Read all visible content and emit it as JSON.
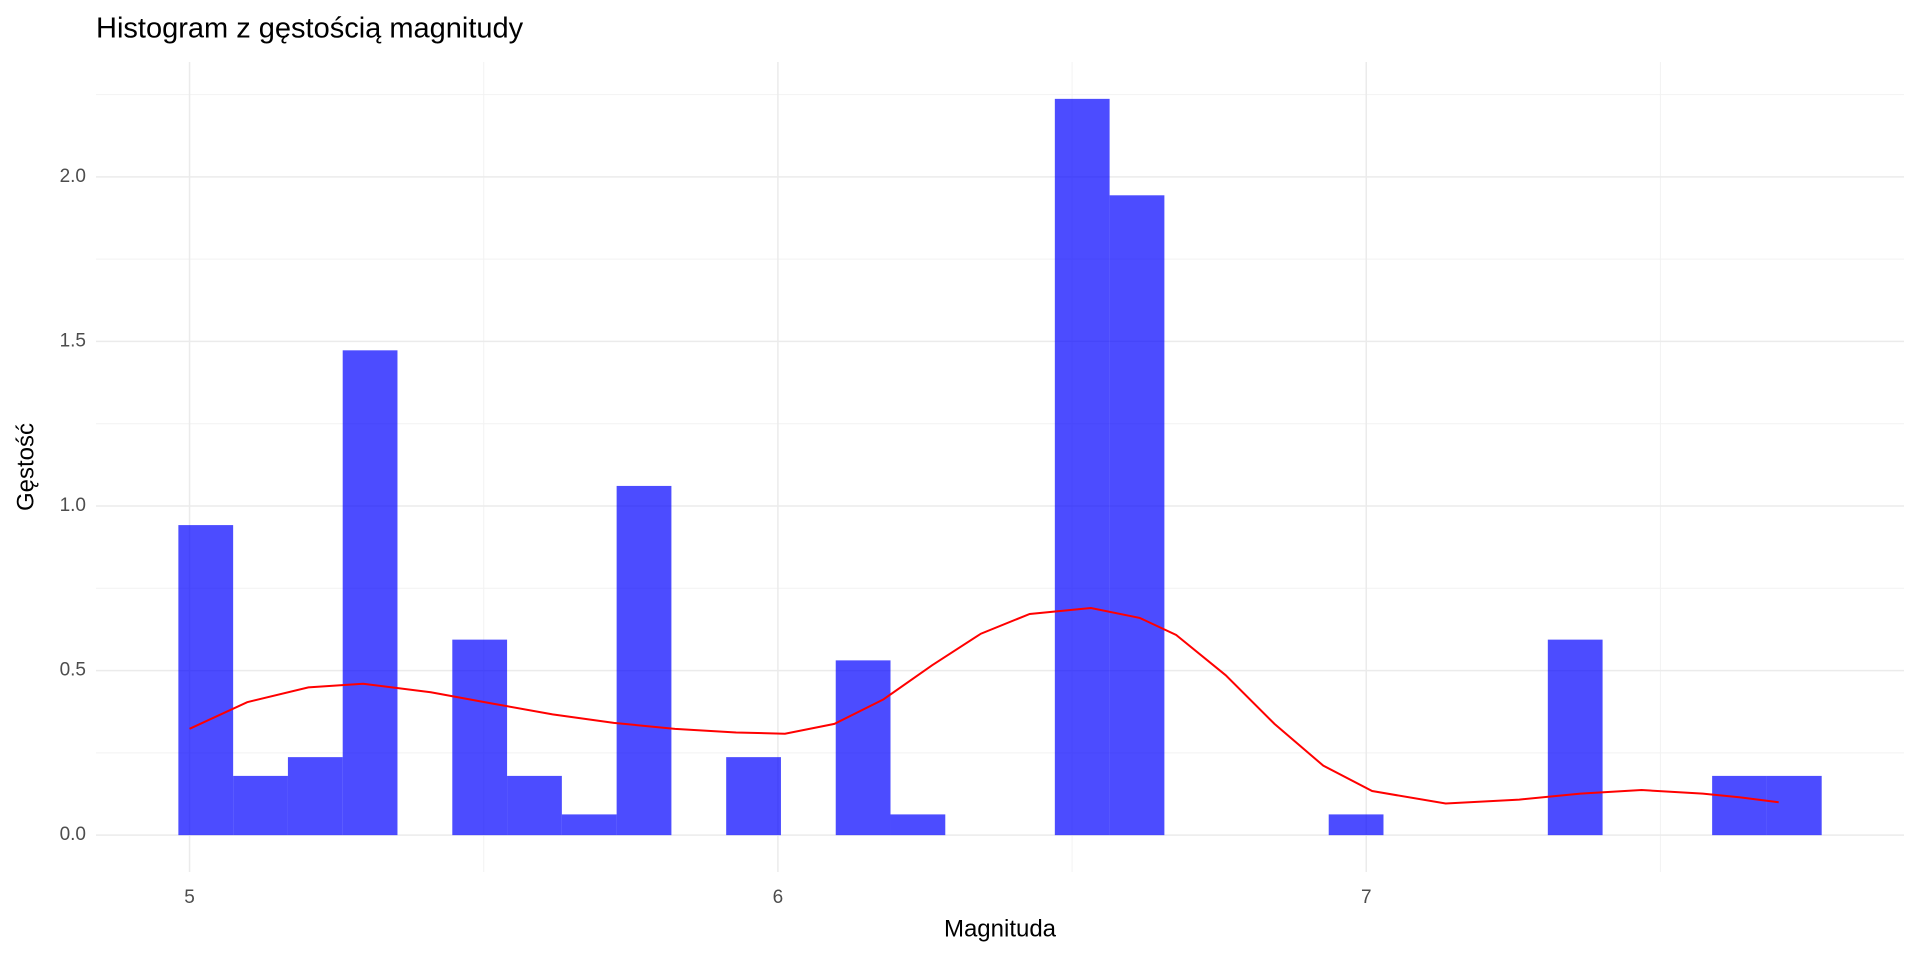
{
  "chart_data": {
    "type": "histogram",
    "title": "Histogram z gęstością magnitudy",
    "x_label": "Magnituda",
    "y_label": "Gęstość",
    "bins": [
      4.981,
      5.0741,
      5.1672,
      5.2603,
      5.3534,
      5.4466,
      5.5397,
      5.6328,
      5.7259,
      5.819,
      5.9121,
      6.0052,
      6.0983,
      6.1914,
      6.2845,
      6.3776,
      6.4707,
      6.5638,
      6.6569,
      6.75,
      6.8431,
      6.9362,
      7.0293,
      7.1224,
      7.2155,
      7.3086,
      7.4017,
      7.4948,
      7.5879,
      7.681,
      7.7741
    ],
    "counts": [
      0.942,
      0.18,
      0.237,
      1.473,
      0,
      0.594,
      0.18,
      0.063,
      1.061,
      0,
      0.237,
      0,
      0.531,
      0.063,
      0,
      0,
      2.237,
      1.944,
      0,
      0,
      0,
      0.063,
      0,
      0,
      0,
      0.594,
      0,
      0,
      0.18,
      0.18
    ],
    "color": "#0000ff",
    "opacity": 0.7,
    "density": {
      "x": [
        5.0,
        5.098,
        5.202,
        5.295,
        5.41,
        5.514,
        5.617,
        5.721,
        5.825,
        5.929,
        6.012,
        6.096,
        6.179,
        6.262,
        6.345,
        6.428,
        6.532,
        6.615,
        6.677,
        6.761,
        6.844,
        6.927,
        7.01,
        7.135,
        7.26,
        7.364,
        7.468,
        7.572,
        7.634,
        7.701
      ],
      "values": [
        0.323,
        0.404,
        0.449,
        0.46,
        0.434,
        0.4,
        0.367,
        0.341,
        0.323,
        0.312,
        0.308,
        0.338,
        0.412,
        0.516,
        0.612,
        0.672,
        0.69,
        0.66,
        0.608,
        0.486,
        0.338,
        0.211,
        0.134,
        0.096,
        0.108,
        0.126,
        0.137,
        0.126,
        0.115,
        0.1
      ],
      "color": "#ff0000"
    },
    "xlim": [
      4.841,
      7.914
    ],
    "ylim": [
      -0.112,
      2.349
    ],
    "xticks": [
      5,
      6,
      7
    ],
    "yticks": [
      {
        "value": 0,
        "label": "0.0"
      },
      0.5,
      {
        "value": 1,
        "label": "1.0"
      },
      1.5,
      {
        "value": 2,
        "label": "2.0"
      }
    ],
    "x_minor_ticks": [
      5.5,
      6.5,
      7.5
    ],
    "y_minor_ticks": [
      0.25,
      0.75,
      1.25,
      1.75,
      2.25
    ],
    "grid": true
  }
}
